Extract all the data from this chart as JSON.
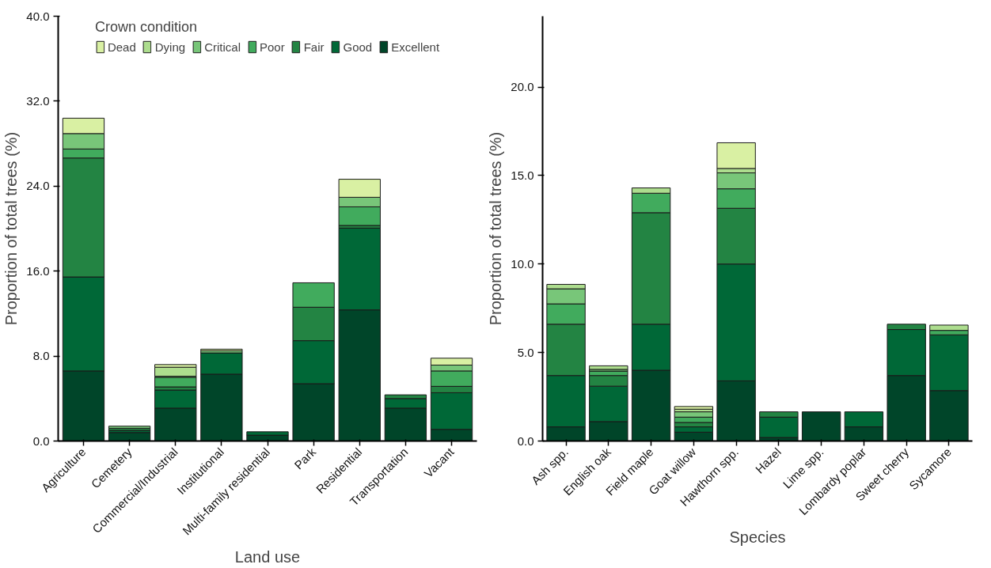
{
  "chart_data": [
    {
      "type": "bar",
      "stacked": true,
      "xlabel": "Land use",
      "ylabel": "Proportion of total trees (%)",
      "legend_title": "Crown condition",
      "legend": "top",
      "grid": false,
      "categories": [
        "Agriculture",
        "Cemetery",
        "Commercial/Industrial",
        "Institutional",
        "Multi-family residential",
        "Park",
        "Residential",
        "Transportation",
        "Vacant"
      ],
      "ylim": [
        0,
        40
      ],
      "yticks": [
        {
          "value": 0,
          "label": "0.0"
        },
        {
          "value": 8,
          "label": "8.0"
        },
        {
          "value": 16,
          "label": "16.0"
        },
        {
          "value": 24,
          "label": "24.0"
        },
        {
          "value": 32,
          "label": "32.0"
        },
        {
          "value": 40,
          "label": "40.0"
        }
      ],
      "series": [
        {
          "name": "Excellent",
          "color": "#004529",
          "values": [
            6.6,
            0.8,
            3.1,
            6.3,
            0.55,
            5.4,
            12.35,
            3.1,
            1.1
          ]
        },
        {
          "name": "Good",
          "color": "#006837",
          "values": [
            8.85,
            0.2,
            1.7,
            2.0,
            0.32,
            4.05,
            7.7,
            0.9,
            3.45
          ]
        },
        {
          "name": "Fair",
          "color": "#238443",
          "values": [
            11.2,
            0.2,
            0.3,
            null,
            null,
            3.15,
            0.25,
            0.35,
            0.6
          ]
        },
        {
          "name": "Poor",
          "color": "#41ab5d",
          "values": [
            0.85,
            null,
            0.9,
            null,
            null,
            2.3,
            1.75,
            null,
            1.45
          ]
        },
        {
          "name": "Critical",
          "color": "#78c679",
          "values": [
            1.45,
            0.2,
            0.1,
            0.2,
            null,
            null,
            0.9,
            null,
            0.55
          ]
        },
        {
          "name": "Dying",
          "color": "#addd8e",
          "values": [
            null,
            null,
            0.85,
            null,
            null,
            null,
            null,
            null,
            null
          ]
        },
        {
          "name": "Dead",
          "color": "#d9f0a3",
          "values": [
            1.45,
            null,
            0.25,
            0.15,
            null,
            null,
            1.7,
            null,
            0.65
          ]
        }
      ]
    },
    {
      "type": "bar",
      "stacked": true,
      "xlabel": "Species",
      "ylabel": "Proportion of total trees (%)",
      "grid": false,
      "categories": [
        "Ash spp.",
        "English oak",
        "Field maple",
        "Goat willow",
        "Hawthorn spp.",
        "Hazel",
        "Lime spp.",
        "Lombardy poplar",
        "Sweet cherry",
        "Sycamore"
      ],
      "ylim": [
        0,
        24
      ],
      "yticks": [
        {
          "value": 0,
          "label": "0.0"
        },
        {
          "value": 5,
          "label": "5.0"
        },
        {
          "value": 10,
          "label": "10.0"
        },
        {
          "value": 15,
          "label": "15.0"
        },
        {
          "value": 20,
          "label": "20.0"
        }
      ],
      "series": [
        {
          "color": "#004529",
          "values": [
            0.8,
            1.1,
            4.0,
            0.5,
            3.4,
            0.2,
            1.65,
            0.8,
            3.7,
            2.85
          ]
        },
        {
          "color": "#006837",
          "values": [
            2.9,
            2.0,
            2.6,
            0.3,
            6.6,
            1.15,
            null,
            0.85,
            2.6,
            3.15
          ]
        },
        {
          "color": "#238443",
          "values": [
            2.9,
            0.6,
            6.3,
            0.25,
            3.15,
            0.3,
            null,
            null,
            0.3,
            null
          ]
        },
        {
          "color": "#41ab5d",
          "values": [
            1.15,
            0.25,
            1.1,
            0.3,
            1.1,
            null,
            null,
            null,
            null,
            0.25
          ]
        },
        {
          "color": "#78c679",
          "values": [
            0.85,
            0.1,
            null,
            0.3,
            0.9,
            null,
            null,
            null,
            null,
            null
          ]
        },
        {
          "color": "#addd8e",
          "values": [
            0.25,
            0.2,
            0.3,
            0.15,
            0.25,
            null,
            null,
            null,
            null,
            0.3
          ]
        },
        {
          "color": "#d9f0a3",
          "values": [
            null,
            null,
            null,
            0.15,
            1.45,
            null,
            null,
            null,
            null,
            null
          ]
        }
      ]
    }
  ]
}
